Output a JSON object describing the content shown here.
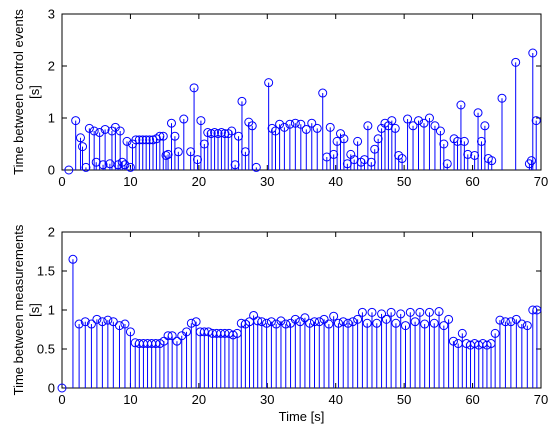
{
  "chart_data": [
    {
      "type": "stem",
      "xlabel": "",
      "ylabel": [
        "Time between control events",
        "[s]"
      ],
      "xlim": [
        0,
        70
      ],
      "ylim": [
        0,
        3
      ],
      "xticks": [
        0,
        10,
        20,
        30,
        40,
        50,
        60,
        70
      ],
      "yticks": [
        0,
        1,
        2,
        3
      ],
      "grid": false,
      "color": "#0000ff",
      "x": [
        1.0,
        2.0,
        2.7,
        3.0,
        3.5,
        4.0,
        4.7,
        5.0,
        5.5,
        6.0,
        6.3,
        7.0,
        7.3,
        7.8,
        8.2,
        8.5,
        8.8,
        9.2,
        9.5,
        10.0,
        10.3,
        10.8,
        11.3,
        11.8,
        12.3,
        12.8,
        13.3,
        13.8,
        14.3,
        14.8,
        15.2,
        15.5,
        16.0,
        16.5,
        17.0,
        17.8,
        18.8,
        19.3,
        19.8,
        20.3,
        20.8,
        21.3,
        21.8,
        22.3,
        22.8,
        23.3,
        23.8,
        24.3,
        24.8,
        25.3,
        25.8,
        26.3,
        26.8,
        27.3,
        27.8,
        28.4,
        30.2,
        30.7,
        31.2,
        31.8,
        32.5,
        33.3,
        34.1,
        34.9,
        35.7,
        36.5,
        37.3,
        38.1,
        38.7,
        39.2,
        39.7,
        40.2,
        40.7,
        41.2,
        41.7,
        42.2,
        42.7,
        43.2,
        43.7,
        44.2,
        44.7,
        45.2,
        45.7,
        46.2,
        46.7,
        47.2,
        47.7,
        48.2,
        48.7,
        49.2,
        49.7,
        50.5,
        51.3,
        52.1,
        52.9,
        53.7,
        54.5,
        55.3,
        55.8,
        56.3,
        57.3,
        57.8,
        58.3,
        58.8,
        59.3,
        60.3,
        60.8,
        61.3,
        61.8,
        62.3,
        62.8,
        64.3,
        66.3,
        68.3,
        68.6,
        68.8,
        69.3
      ],
      "y": [
        0.0,
        0.95,
        0.62,
        0.45,
        0.05,
        0.8,
        0.75,
        0.15,
        0.72,
        0.1,
        0.78,
        0.12,
        0.75,
        0.82,
        0.1,
        0.75,
        0.15,
        0.1,
        0.55,
        0.05,
        0.5,
        0.58,
        0.58,
        0.58,
        0.58,
        0.58,
        0.58,
        0.6,
        0.65,
        0.65,
        0.28,
        0.3,
        0.9,
        0.65,
        0.35,
        0.98,
        0.35,
        1.58,
        0.2,
        0.95,
        0.5,
        0.72,
        0.7,
        0.72,
        0.7,
        0.72,
        0.7,
        0.7,
        0.75,
        0.1,
        0.65,
        1.32,
        0.35,
        0.92,
        0.85,
        0.05,
        1.68,
        0.8,
        0.75,
        0.88,
        0.82,
        0.88,
        0.9,
        0.88,
        0.78,
        0.9,
        0.8,
        1.48,
        0.25,
        0.82,
        0.3,
        0.55,
        0.7,
        0.6,
        0.12,
        0.3,
        0.2,
        0.55,
        0.15,
        0.2,
        0.85,
        0.15,
        0.4,
        0.6,
        0.8,
        0.9,
        0.85,
        0.95,
        0.8,
        0.28,
        0.22,
        0.98,
        0.85,
        0.95,
        0.9,
        1.0,
        0.85,
        0.75,
        0.5,
        0.12,
        0.6,
        0.55,
        1.25,
        0.55,
        0.3,
        0.28,
        1.1,
        0.55,
        0.85,
        0.22,
        0.18,
        1.38,
        2.07,
        0.12,
        0.18,
        2.25,
        0.95
      ]
    },
    {
      "type": "stem",
      "xlabel": "Time [s]",
      "ylabel": [
        "Time between measurements",
        "[s]"
      ],
      "xlim": [
        0,
        70
      ],
      "ylim": [
        0,
        2
      ],
      "xticks": [
        0,
        10,
        20,
        30,
        40,
        50,
        60,
        70
      ],
      "yticks": [
        0,
        0.5,
        1,
        1.5,
        2
      ],
      "grid": false,
      "color": "#0000ff",
      "x": [
        0.0,
        1.6,
        2.5,
        3.4,
        4.3,
        5.1,
        5.9,
        6.7,
        7.5,
        8.4,
        9.2,
        10.0,
        10.7,
        11.3,
        11.9,
        12.5,
        13.1,
        13.7,
        14.3,
        14.9,
        15.5,
        16.1,
        16.8,
        17.5,
        18.2,
        18.9,
        19.6,
        20.2,
        20.8,
        21.4,
        22.0,
        22.6,
        23.2,
        23.8,
        24.4,
        25.0,
        25.6,
        26.2,
        26.8,
        27.4,
        28.0,
        28.6,
        29.2,
        29.9,
        30.6,
        31.3,
        32.0,
        32.7,
        33.4,
        34.1,
        34.8,
        35.5,
        36.2,
        36.9,
        37.6,
        38.3,
        39.0,
        39.7,
        40.4,
        41.1,
        41.8,
        42.5,
        43.2,
        43.9,
        44.6,
        45.3,
        46.0,
        46.7,
        47.4,
        48.1,
        48.8,
        49.5,
        50.2,
        50.9,
        51.6,
        52.3,
        53.0,
        53.7,
        54.4,
        55.1,
        55.8,
        56.5,
        57.2,
        57.9,
        58.5,
        59.1,
        59.7,
        60.3,
        60.9,
        61.5,
        62.1,
        62.7,
        63.3,
        64.0,
        64.8,
        65.6,
        66.4,
        67.2,
        68.0,
        68.8,
        69.4
      ],
      "y": [
        0.0,
        1.65,
        0.82,
        0.85,
        0.82,
        0.88,
        0.85,
        0.87,
        0.85,
        0.8,
        0.82,
        0.72,
        0.58,
        0.57,
        0.57,
        0.57,
        0.57,
        0.57,
        0.57,
        0.6,
        0.67,
        0.67,
        0.6,
        0.67,
        0.72,
        0.83,
        0.85,
        0.72,
        0.72,
        0.72,
        0.7,
        0.7,
        0.7,
        0.7,
        0.7,
        0.68,
        0.7,
        0.83,
        0.82,
        0.85,
        0.93,
        0.86,
        0.85,
        0.83,
        0.85,
        0.82,
        0.86,
        0.82,
        0.83,
        0.88,
        0.85,
        0.9,
        0.83,
        0.85,
        0.85,
        0.88,
        0.82,
        0.92,
        0.83,
        0.85,
        0.83,
        0.85,
        0.88,
        0.97,
        0.83,
        0.97,
        0.83,
        0.95,
        0.88,
        0.97,
        0.83,
        0.95,
        0.8,
        0.97,
        0.85,
        0.97,
        0.82,
        0.97,
        0.83,
        0.98,
        0.8,
        0.88,
        0.6,
        0.57,
        0.7,
        0.57,
        0.55,
        0.57,
        0.55,
        0.57,
        0.55,
        0.57,
        0.7,
        0.87,
        0.85,
        0.85,
        0.88,
        0.82,
        0.8,
        1.0,
        1.0
      ]
    }
  ]
}
